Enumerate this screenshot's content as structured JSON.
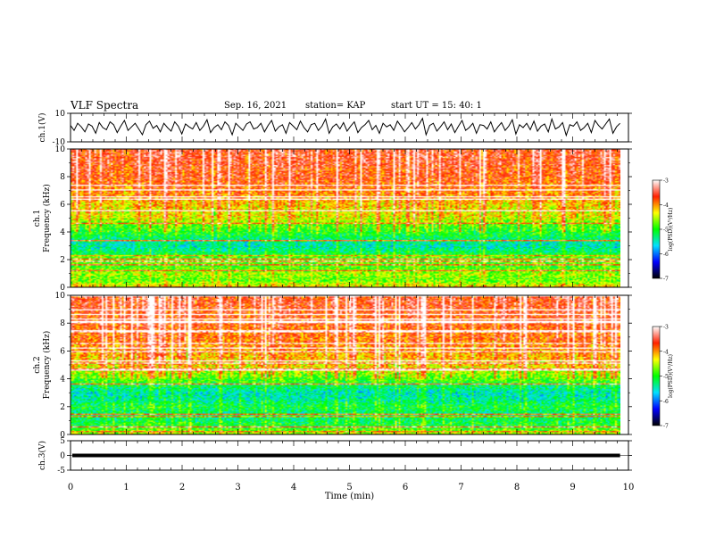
{
  "header": {
    "title": "VLF Spectra",
    "date": "Sep. 16, 2021",
    "station": "station= KAP",
    "start": "start  UT =   15: 40: 1"
  },
  "colorbar": {
    "label": "log(PSD)(V²/Hz)",
    "ticks": [
      "-3",
      "-4",
      "-5",
      "-6",
      "-7"
    ],
    "range": [
      -7,
      -3
    ],
    "colormap": [
      "#000000",
      "#0000ff",
      "#00e0ff",
      "#00ff00",
      "#ffff00",
      "#ff2000",
      "#ffffff"
    ]
  },
  "chart_data": [
    {
      "type": "line",
      "name": "ch1-waveform",
      "ylabel": "ch.1(V)",
      "ylim": [
        -10,
        10
      ],
      "yticks": [
        "10",
        "-10"
      ],
      "xlim": [
        0,
        10
      ],
      "x_end": 9.85,
      "series": [
        {
          "color": "#000000",
          "y": [
            1.5,
            -2,
            3,
            0.5,
            -3,
            2.5,
            1,
            -4,
            3.5,
            0,
            -1.5,
            4,
            2,
            -3.5,
            1,
            5,
            -2,
            0.5,
            3,
            -1,
            -5,
            2,
            4.5,
            -0.5,
            1.5,
            -3,
            3,
            0,
            -2.5,
            4,
            1,
            -4.5,
            2.5,
            0.5,
            -1,
            3.5,
            -2,
            1,
            5.5,
            -3.5,
            0,
            2,
            -1.5,
            4,
            1.5,
            -5,
            3,
            0.5,
            -2,
            2.5,
            4,
            -1,
            0,
            3,
            -3,
            1.5,
            5,
            -2.5,
            0.5,
            2,
            -4,
            3.5,
            1,
            -1.5,
            4.5,
            0,
            -3,
            2,
            3,
            -2,
            1,
            6,
            -4,
            0.5,
            2.5,
            -1,
            3.5,
            -2.5,
            1,
            4,
            -3.5,
            0,
            2,
            5,
            -1.5,
            1.5,
            -4,
            3,
            0.5,
            2,
            -2,
            4.5,
            1,
            -3,
            0,
            3.5,
            -1,
            2,
            6.5,
            -5,
            1.5,
            3,
            -2.5,
            0.5,
            4,
            -1.5,
            2.5,
            -3.5,
            1,
            5,
            -2,
            0,
            3,
            -4,
            2,
            1.5,
            -1,
            4,
            -3,
            0.5,
            3.5,
            -2,
            1,
            5.5,
            -4.5,
            2,
            0,
            3,
            -1.5,
            4.5,
            -2.5,
            1,
            2.5,
            -3,
            6,
            -1,
            0.5,
            3.5,
            -5.5,
            2,
            1,
            4,
            -2,
            0,
            3,
            -3.5,
            5,
            1.5,
            -1,
            2.5,
            6,
            -4,
            0.5,
            3
          ]
        }
      ]
    },
    {
      "type": "heatmap",
      "name": "ch1-spectrogram",
      "ylabel": "ch.1\nFrequency  (kHz)",
      "ylim": [
        0,
        10
      ],
      "yticks": [
        "0",
        "2",
        "4",
        "6",
        "8",
        "10"
      ],
      "xlim": [
        0,
        10
      ],
      "x_end": 9.85,
      "value_range": [
        -7,
        -3
      ],
      "freq_profile_khz": [
        0,
        0.5,
        1,
        1.5,
        2,
        2.5,
        3,
        3.5,
        4,
        4.5,
        5,
        5.5,
        6,
        6.5,
        7,
        7.5,
        8,
        8.5,
        9,
        9.5,
        10
      ],
      "freq_profile_log_psd": [
        -4.2,
        -4.8,
        -4.6,
        -4.9,
        -4.7,
        -5.2,
        -5.5,
        -5.3,
        -5.0,
        -4.8,
        -4.4,
        -4.3,
        -4.2,
        -4.0,
        -3.9,
        -3.8,
        -3.7,
        -3.7,
        -3.6,
        -3.6,
        -3.6
      ]
    },
    {
      "type": "heatmap",
      "name": "ch2-spectrogram",
      "ylabel": "ch.2\nFrequency  (kHz)",
      "ylim": [
        0,
        10
      ],
      "yticks": [
        "0",
        "2",
        "4",
        "6",
        "8",
        "10"
      ],
      "xlim": [
        0,
        10
      ],
      "x_end": 9.85,
      "value_range": [
        -7,
        -3
      ],
      "freq_profile_khz": [
        0,
        0.5,
        1,
        1.5,
        2,
        2.5,
        3,
        3.5,
        4,
        4.5,
        5,
        5.5,
        6,
        6.5,
        7,
        7.5,
        8,
        8.5,
        9,
        9.5,
        10
      ],
      "freq_profile_log_psd": [
        -4.5,
        -5.0,
        -5.2,
        -5.3,
        -5.1,
        -5.4,
        -5.5,
        -5.2,
        -4.8,
        -4.5,
        -4.2,
        -4.1,
        -4.0,
        -3.9,
        -3.8,
        -3.8,
        -3.7,
        -3.7,
        -3.6,
        -3.6,
        -3.6
      ]
    },
    {
      "type": "line",
      "name": "ch3-waveform",
      "ylabel": "ch.3(V)",
      "ylim": [
        -5,
        5
      ],
      "yticks": [
        "5",
        "0",
        "-5"
      ],
      "xlim": [
        0,
        10
      ],
      "x_end": 9.85,
      "series": [
        {
          "color": "#000000",
          "y": [
            0,
            0
          ]
        }
      ],
      "band": [
        -0.6,
        0.6
      ]
    }
  ],
  "x_axis": {
    "label": "Time  (min)",
    "ticks": [
      "0",
      "1",
      "2",
      "3",
      "4",
      "5",
      "6",
      "7",
      "8",
      "9",
      "10"
    ]
  }
}
